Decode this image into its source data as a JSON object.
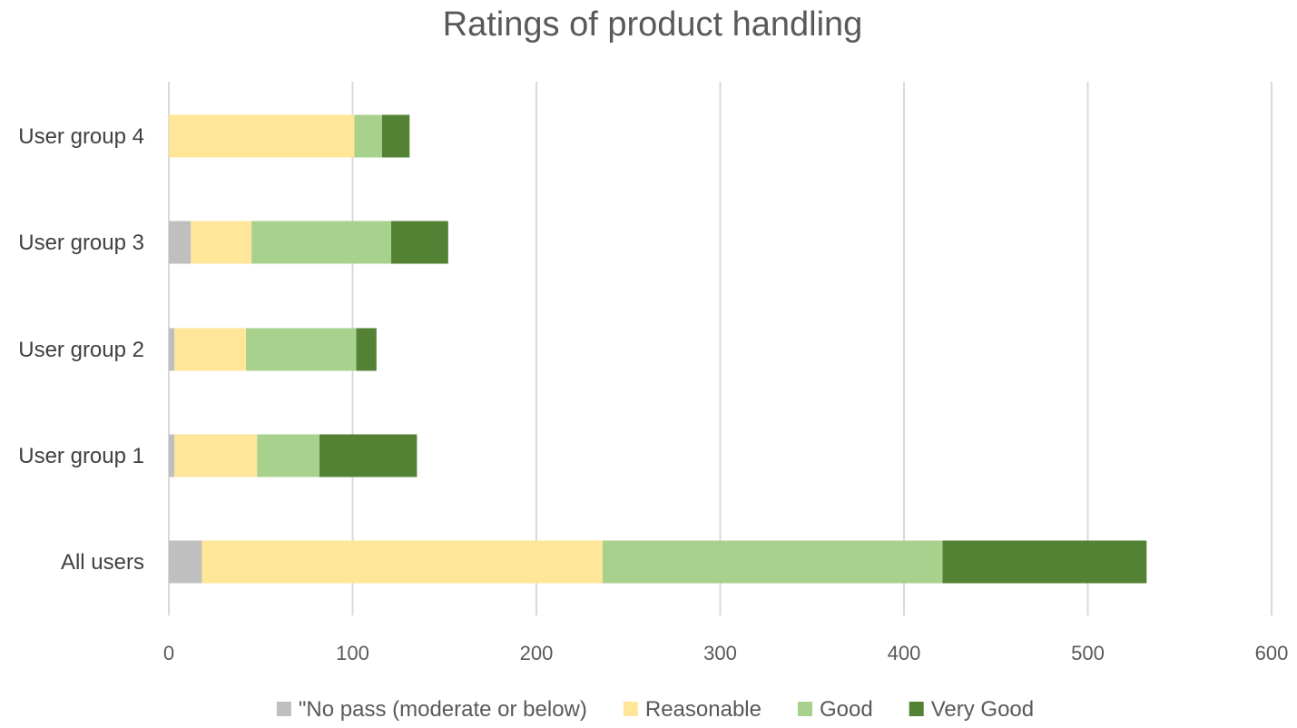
{
  "chart_data": {
    "type": "bar",
    "orientation": "horizontal",
    "stacked": true,
    "title": "Ratings of product handling",
    "categories": [
      "All users",
      "User group 1",
      "User group 2",
      "User group 3",
      "User group 4"
    ],
    "series": [
      {
        "name": "\"No pass (moderate or below)",
        "color": "#bfbfbf",
        "values": [
          18,
          3,
          3,
          12,
          0
        ]
      },
      {
        "name": "Reasonable",
        "color": "#ffe699",
        "values": [
          218,
          45,
          39,
          33,
          101
        ]
      },
      {
        "name": "Good",
        "color": "#a9d18e",
        "values": [
          185,
          34,
          60,
          76,
          15
        ]
      },
      {
        "name": "Very Good",
        "color": "#548235",
        "values": [
          111,
          53,
          11,
          31,
          15
        ]
      }
    ],
    "xlim": [
      0,
      600
    ],
    "xticks": [
      "0",
      "100",
      "200",
      "300",
      "400",
      "500",
      "600"
    ],
    "grid": true,
    "legend_position": "bottom"
  }
}
